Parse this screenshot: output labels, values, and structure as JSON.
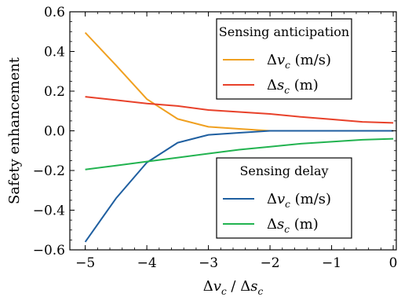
{
  "chart_data": {
    "type": "line",
    "xlabel": {
      "parts": [
        "Δ",
        "v",
        "c",
        " / Δ",
        "s",
        "c"
      ]
    },
    "ylabel": "Safety enhancement",
    "xlim": [
      -5.25,
      0.05
    ],
    "ylim": [
      -0.6,
      0.6
    ],
    "x_ticks": [
      -5,
      -4,
      -3,
      -2,
      -1,
      0
    ],
    "x_tick_labels": [
      "−5",
      "−4",
      "−3",
      "−2",
      "−1",
      "0"
    ],
    "y_ticks": [
      -0.6,
      -0.4,
      -0.2,
      0.0,
      0.2,
      0.4,
      0.6
    ],
    "y_tick_labels": [
      "−0.6",
      "−0.4",
      "−0.2",
      "0.0",
      "0.2",
      "0.4",
      "0.6"
    ],
    "grid": false,
    "legends": [
      {
        "title": "Sensing anticipation",
        "placement": "top-right",
        "entries": [
          {
            "symbol": [
              "Δ",
              "v",
              "c"
            ],
            "unit": " (m/s)",
            "color": "#f0a020"
          },
          {
            "symbol": [
              "Δ",
              "s",
              "c"
            ],
            "unit": " (m)",
            "color": "#e8412a"
          }
        ]
      },
      {
        "title": "Sensing delay",
        "placement": "lower-right",
        "entries": [
          {
            "symbol": [
              "Δ",
              "v",
              "c"
            ],
            "unit": " (m/s)",
            "color": "#1f5fa0"
          },
          {
            "symbol": [
              "Δ",
              "s",
              "c"
            ],
            "unit": " (m)",
            "color": "#22b350"
          }
        ]
      }
    ],
    "series": [
      {
        "group": "Sensing anticipation",
        "label": "Δv_c (m/s)",
        "color": "#f0a020",
        "x": [
          -5,
          -4.5,
          -4,
          -3.5,
          -3,
          -2.5,
          -2,
          -1.5,
          -1,
          -0.5,
          0
        ],
        "y": [
          0.495,
          0.33,
          0.16,
          0.06,
          0.02,
          0.01,
          0.0,
          0.0,
          0.0,
          0.0,
          0.0
        ]
      },
      {
        "group": "Sensing anticipation",
        "label": "Δs_c (m)",
        "color": "#e8412a",
        "x": [
          -5,
          -4.5,
          -4,
          -3.5,
          -3,
          -2.5,
          -2,
          -1.5,
          -1,
          -0.5,
          0
        ],
        "y": [
          0.172,
          0.155,
          0.138,
          0.125,
          0.105,
          0.095,
          0.085,
          0.07,
          0.058,
          0.045,
          0.04
        ]
      },
      {
        "group": "Sensing delay",
        "label": "Δv_c (m/s)",
        "color": "#1f5fa0",
        "x": [
          -5,
          -4.5,
          -4,
          -3.5,
          -3,
          -2.5,
          -2,
          -1.5,
          -1,
          -0.5,
          0
        ],
        "y": [
          -0.56,
          -0.34,
          -0.16,
          -0.06,
          -0.02,
          -0.01,
          0.0,
          0.0,
          0.0,
          0.0,
          0.0
        ]
      },
      {
        "group": "Sensing delay",
        "label": "Δs_c (m)",
        "color": "#22b350",
        "x": [
          -5,
          -4.5,
          -4,
          -3.5,
          -3,
          -2.5,
          -2,
          -1.5,
          -1,
          -0.5,
          0
        ],
        "y": [
          -0.195,
          -0.175,
          -0.155,
          -0.135,
          -0.115,
          -0.095,
          -0.08,
          -0.065,
          -0.055,
          -0.045,
          -0.04
        ]
      }
    ]
  }
}
